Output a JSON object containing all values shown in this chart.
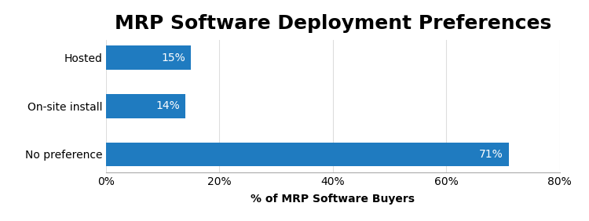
{
  "title": "MRP Software Deployment Preferences",
  "categories": [
    "No preference",
    "On-site install",
    "Hosted"
  ],
  "values": [
    71,
    14,
    15
  ],
  "bar_color": "#1f7bc0",
  "bar_labels": [
    "71%",
    "14%",
    "15%"
  ],
  "xlabel": "% of MRP Software Buyers",
  "xlim": [
    0,
    80
  ],
  "xticks": [
    0,
    20,
    40,
    60,
    80
  ],
  "xtick_labels": [
    "0%",
    "20%",
    "40%",
    "60%",
    "80%"
  ],
  "title_fontsize": 18,
  "title_fontweight": "bold",
  "label_fontsize": 10,
  "xlabel_fontsize": 10,
  "xlabel_fontweight": "bold",
  "bar_label_fontsize": 10,
  "bar_label_fontweight": "normal",
  "bar_label_color": "#ffffff",
  "background_color": "#ffffff",
  "bar_height": 0.5,
  "grid_color": "#dddddd",
  "spine_color": "#aaaaaa"
}
